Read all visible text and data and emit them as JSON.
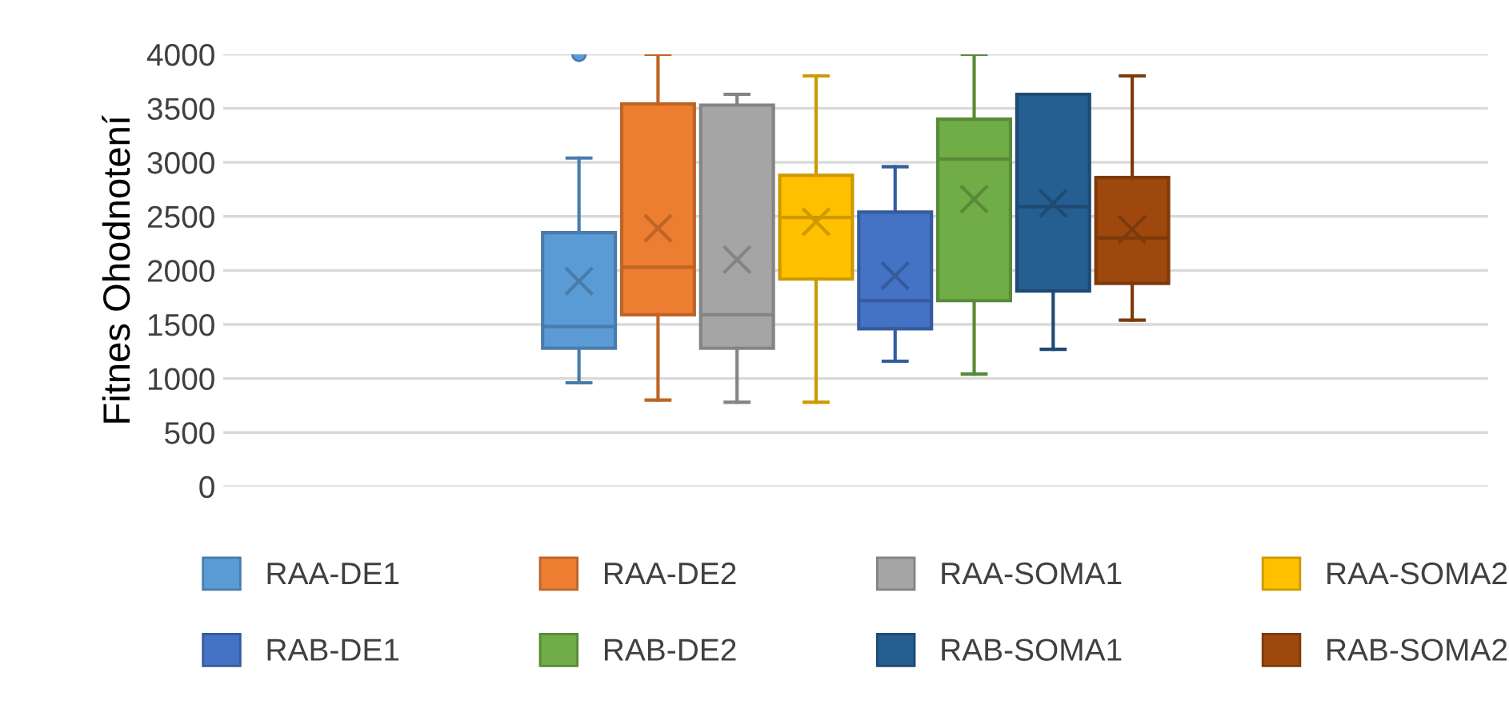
{
  "chart_data": {
    "type": "box",
    "ylabel": "Fitnes Ohodnotení",
    "categories": [
      null
    ],
    "ylim": [
      0,
      4000
    ],
    "yticks": [
      0,
      500,
      1000,
      1500,
      2000,
      2500,
      3000,
      3500,
      4000
    ],
    "grid": "y",
    "legend": "bottom",
    "series": [
      {
        "name": "RAA-DE1",
        "color": "#5b9bd5",
        "boxes": [
          {
            "low": 960,
            "q1": 1280,
            "median": 1480,
            "q3": 2350,
            "high": 3040,
            "mean": 1900,
            "outliers": [
              4000
            ]
          }
        ]
      },
      {
        "name": "RAA-DE2",
        "color": "#ed7d31",
        "boxes": [
          {
            "low": 800,
            "q1": 1590,
            "median": 2030,
            "q3": 3540,
            "high": 4000,
            "mean": 2390
          }
        ]
      },
      {
        "name": "RAA-SOMA1",
        "color": "#a5a5a5",
        "boxes": [
          {
            "low": 780,
            "q1": 1280,
            "median": 1590,
            "q3": 3530,
            "high": 3630,
            "mean": 2100
          }
        ]
      },
      {
        "name": "RAA-SOMA2",
        "color": "#ffc000",
        "boxes": [
          {
            "low": 780,
            "q1": 1920,
            "median": 2490,
            "q3": 2880,
            "high": 3800,
            "mean": 2450
          }
        ]
      },
      {
        "name": "RAB-DE1",
        "color": "#4472c4",
        "boxes": [
          {
            "low": 1160,
            "q1": 1460,
            "median": 1720,
            "q3": 2540,
            "high": 2960,
            "mean": 1950
          }
        ]
      },
      {
        "name": "RAB-DE2",
        "color": "#70ad47",
        "boxes": [
          {
            "low": 1040,
            "q1": 1720,
            "median": 3030,
            "q3": 3400,
            "high": 4000,
            "mean": 2660
          }
        ]
      },
      {
        "name": "RAB-SOMA1",
        "color": "#255e91",
        "boxes": [
          {
            "low": 1270,
            "q1": 1810,
            "median": 2590,
            "q3": 3630,
            "high": 3630,
            "mean": 2620
          }
        ]
      },
      {
        "name": "RAB-SOMA2",
        "color": "#9e480e",
        "boxes": [
          {
            "low": 1540,
            "q1": 1880,
            "median": 2300,
            "q3": 2860,
            "high": 3800,
            "mean": 2380
          }
        ]
      }
    ]
  }
}
